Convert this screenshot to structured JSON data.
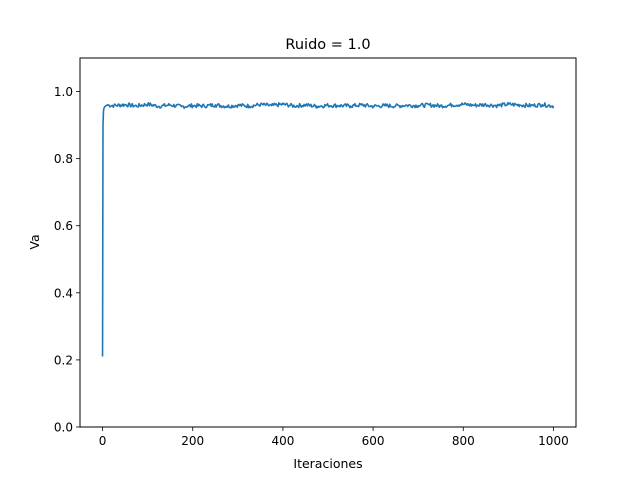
{
  "chart_data": {
    "type": "line",
    "title": "Ruido = 1.0",
    "xlabel": "Iteraciones",
    "ylabel": "Va",
    "xlim": [
      -50,
      1050
    ],
    "ylim": [
      0,
      1.1
    ],
    "xticks": [
      0,
      200,
      400,
      600,
      800,
      1000
    ],
    "yticks": [
      0.0,
      0.2,
      0.4,
      0.6,
      0.8,
      1.0
    ],
    "xtick_labels": [
      "0",
      "200",
      "400",
      "600",
      "800",
      "1000"
    ],
    "ytick_labels": [
      "0.0",
      "0.2",
      "0.4",
      "0.6",
      "0.8",
      "1.0"
    ],
    "grid": false,
    "series": [
      {
        "color": "#1f77b4",
        "x": [
          0,
          1,
          2,
          3,
          5,
          10,
          25,
          50,
          75,
          100,
          125,
          150,
          175,
          200,
          225,
          250,
          275,
          300,
          325,
          350,
          375,
          400,
          425,
          450,
          475,
          500,
          525,
          550,
          575,
          600,
          625,
          650,
          675,
          700,
          725,
          750,
          775,
          800,
          825,
          850,
          875,
          900,
          925,
          950,
          975,
          1000
        ],
        "y": [
          0.21,
          0.9,
          0.94,
          0.95,
          0.955,
          0.96,
          0.958,
          0.961,
          0.957,
          0.962,
          0.956,
          0.96,
          0.955,
          0.958,
          0.957,
          0.96,
          0.956,
          0.959,
          0.957,
          0.961,
          0.958,
          0.962,
          0.957,
          0.96,
          0.956,
          0.959,
          0.958,
          0.957,
          0.96,
          0.956,
          0.958,
          0.957,
          0.959,
          0.958,
          0.96,
          0.957,
          0.96,
          0.962,
          0.959,
          0.961,
          0.958,
          0.962,
          0.96,
          0.958,
          0.961,
          0.957
        ]
      }
    ]
  }
}
